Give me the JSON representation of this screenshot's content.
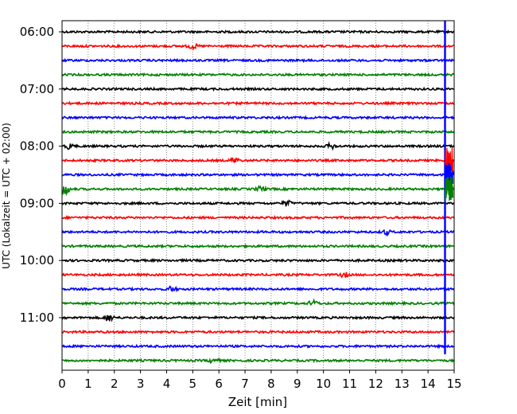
{
  "chart_data": {
    "type": "line",
    "title": "",
    "xlabel": "Zeit  [min]",
    "ylabel": "UTC (Lokalzeit = UTC + 02:00)",
    "xlim": [
      0,
      15
    ],
    "x_ticks": [
      "0",
      "1",
      "2",
      "3",
      "4",
      "5",
      "6",
      "7",
      "8",
      "9",
      "10",
      "11",
      "12",
      "13",
      "14",
      "15"
    ],
    "y_tick_labels": [
      "06:00",
      "07:00",
      "08:00",
      "09:00",
      "10:00",
      "11:00"
    ],
    "row_start": "06:00",
    "row_interval_minutes": 15,
    "grid": "vertical-dotted",
    "trace_colors": [
      "#000000",
      "#ff0000",
      "#0000ff",
      "#008000"
    ],
    "series": [
      {
        "start": "06:00",
        "events": []
      },
      {
        "start": "06:15",
        "events": [
          {
            "x": 5.0,
            "amp": 0.35
          }
        ]
      },
      {
        "start": "06:30",
        "events": []
      },
      {
        "start": "06:45",
        "events": []
      },
      {
        "start": "07:00",
        "events": []
      },
      {
        "start": "07:15",
        "events": []
      },
      {
        "start": "07:30",
        "events": []
      },
      {
        "start": "07:45",
        "events": []
      },
      {
        "start": "08:00",
        "events": [
          {
            "x": 0.3,
            "amp": 0.35
          },
          {
            "x": 10.3,
            "amp": 0.35
          }
        ]
      },
      {
        "start": "08:15",
        "events": [
          {
            "x": 6.6,
            "amp": 0.4
          }
        ]
      },
      {
        "start": "08:30",
        "events": [
          {
            "x": 15.0,
            "amp": 1.1
          }
        ]
      },
      {
        "start": "08:45",
        "events": [
          {
            "x": 0.1,
            "amp": 0.9
          },
          {
            "x": 7.6,
            "amp": 0.35
          }
        ]
      },
      {
        "start": "09:00",
        "events": [
          {
            "x": 8.6,
            "amp": 0.35
          }
        ]
      },
      {
        "start": "09:15",
        "events": []
      },
      {
        "start": "09:30",
        "events": [
          {
            "x": 12.4,
            "amp": 0.3
          }
        ]
      },
      {
        "start": "09:45",
        "events": []
      },
      {
        "start": "10:00",
        "events": []
      },
      {
        "start": "10:15",
        "events": [
          {
            "x": 10.8,
            "amp": 0.3
          }
        ]
      },
      {
        "start": "10:30",
        "events": [
          {
            "x": 4.2,
            "amp": 0.35
          }
        ]
      },
      {
        "start": "10:45",
        "events": [
          {
            "x": 9.6,
            "amp": 0.4
          }
        ]
      },
      {
        "start": "11:00",
        "events": [
          {
            "x": 1.8,
            "amp": 0.5
          }
        ]
      },
      {
        "start": "11:15",
        "events": []
      },
      {
        "start": "11:30",
        "events": []
      },
      {
        "start": "11:45",
        "events": [
          {
            "x": 5.8,
            "amp": 0.35
          }
        ]
      }
    ],
    "main_event": {
      "x": 14.65,
      "start_row": "06:00",
      "end_row": "11:30"
    }
  }
}
